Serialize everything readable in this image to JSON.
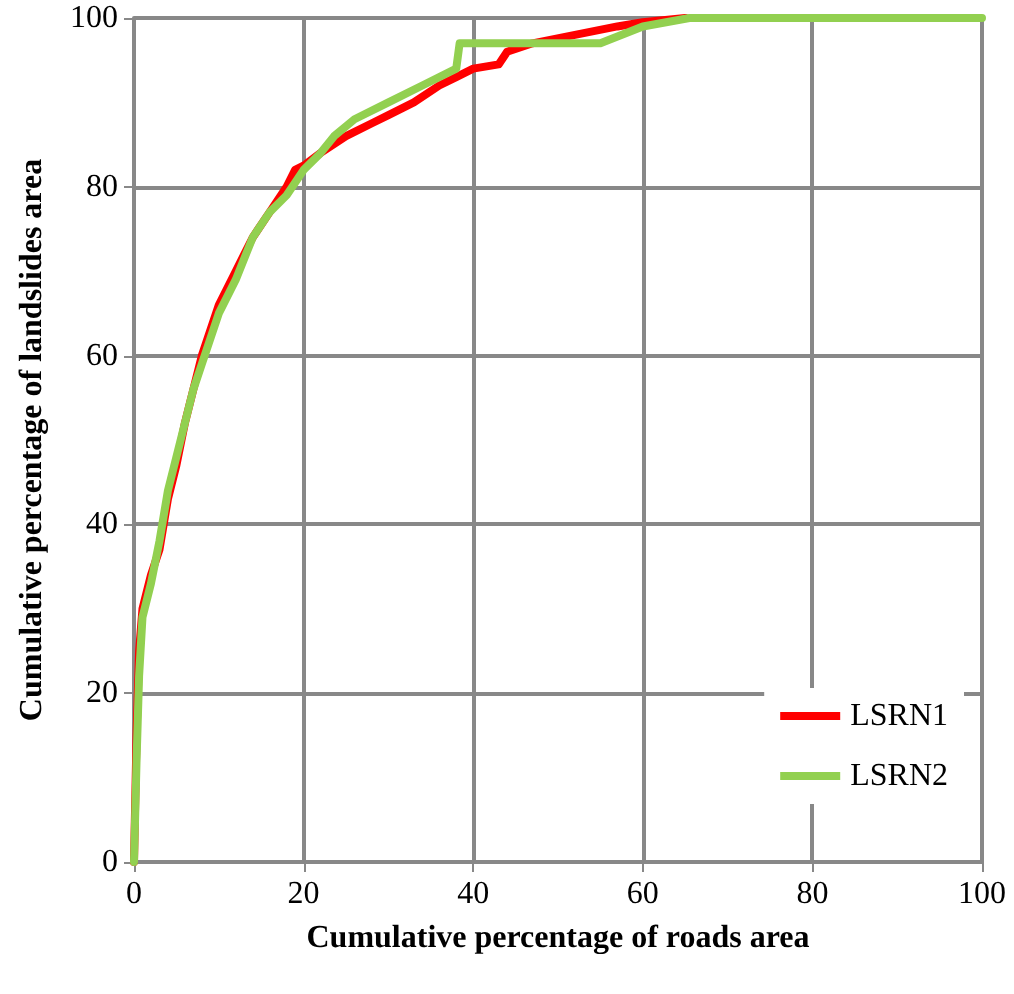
{
  "chart_data": {
    "type": "line",
    "xlabel": "Cumulative percentage of roads area",
    "ylabel": "Cumulative percentage of landslides area",
    "xlim": [
      0,
      100
    ],
    "xticks": [
      0,
      20,
      40,
      60,
      80,
      100
    ],
    "ylim": [
      0,
      100
    ],
    "yticks": [
      0,
      20,
      40,
      60,
      80,
      100
    ],
    "grid": true,
    "legend": "bottom right",
    "marker": "none",
    "line_style": "solid",
    "series": [
      {
        "name": "LSRN1",
        "color": "#ff0000",
        "x": [
          0,
          0.3,
          0.6,
          1,
          2,
          3,
          4,
          5,
          6,
          7,
          8,
          9,
          10,
          12,
          14,
          16,
          18,
          19,
          20,
          22,
          25,
          28,
          30,
          33,
          36,
          38,
          40,
          43,
          44,
          47,
          52,
          57,
          60,
          65
        ],
        "values": [
          0,
          15,
          25,
          30,
          34,
          37,
          43,
          47,
          52,
          56,
          60,
          63,
          66,
          70,
          74,
          77,
          80,
          82,
          82.5,
          84,
          86,
          87.5,
          88.5,
          90,
          92,
          93,
          94,
          94.5,
          96,
          97,
          98,
          99,
          99.5,
          100
        ]
      },
      {
        "name": "LSRN2",
        "color": "#92d050",
        "x": [
          0,
          0.3,
          0.6,
          1,
          2,
          3,
          4,
          5,
          6,
          7,
          8,
          9,
          10,
          12,
          14,
          16,
          18,
          20,
          22,
          23.6,
          26,
          30,
          34,
          38,
          38.4,
          55,
          60,
          65.5,
          100
        ],
        "values": [
          0,
          12,
          22,
          29,
          33,
          38,
          44,
          48,
          52,
          56,
          59,
          62,
          65,
          69,
          74,
          77,
          79,
          82,
          84,
          86,
          88,
          90,
          92,
          94,
          97,
          97,
          99,
          100,
          100
        ]
      }
    ]
  }
}
